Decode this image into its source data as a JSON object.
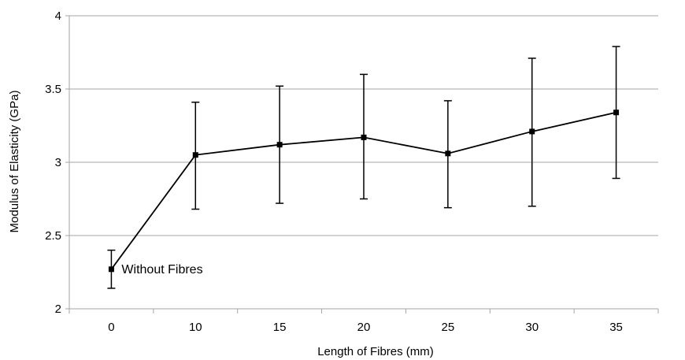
{
  "chart_data": {
    "type": "line",
    "xlabel": "Length of Fibres (mm)",
    "ylabel": "Modulus of Elasticity (GPa)",
    "categories": [
      "0",
      "10",
      "15",
      "20",
      "25",
      "30",
      "35"
    ],
    "series": [
      {
        "values": [
          2.27,
          3.05,
          3.12,
          3.17,
          3.06,
          3.21,
          3.34
        ],
        "error_low": [
          2.14,
          2.68,
          2.72,
          2.75,
          2.69,
          2.7,
          2.89
        ],
        "error_high": [
          2.4,
          3.41,
          3.52,
          3.6,
          3.42,
          3.71,
          3.79
        ],
        "color": "#000000"
      }
    ],
    "ylim": [
      2,
      4
    ],
    "yticks": [
      "2",
      "2.5",
      "3",
      "3.5",
      "4"
    ],
    "grid": true,
    "gridline_color": "#a6a6a6",
    "annotations": [
      {
        "text": "Without Fibres",
        "category": "0"
      }
    ]
  }
}
